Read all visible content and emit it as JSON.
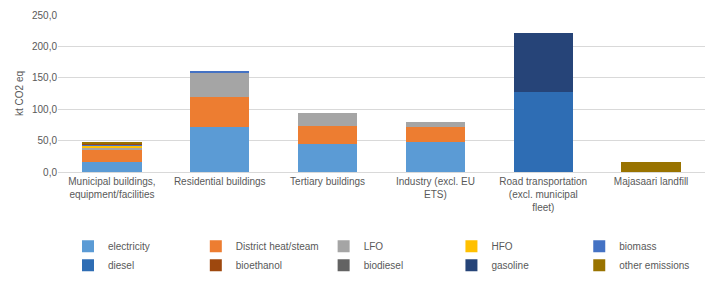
{
  "chart_data": {
    "type": "bar",
    "stacked": true,
    "grid": true,
    "legend": "bottom",
    "y_label": "kt CO2 eq",
    "categories": [
      "Municipal buildings, equipment/facilities",
      "Residential buildings",
      "Tertiary buildings",
      "Industry (excl. EU ETS)",
      "Road transportation (excl. municipal fleet)",
      "Majasaari landfill"
    ],
    "ylim": [
      0,
      250
    ],
    "yticks": [
      {
        "value": 0,
        "label": "0,0"
      },
      {
        "value": 50,
        "label": "50,0"
      },
      {
        "value": 100,
        "label": "100,0"
      },
      {
        "value": 150,
        "label": "150,0"
      },
      {
        "value": 200,
        "label": "200,0"
      },
      {
        "value": 250,
        "label": "250,0"
      }
    ],
    "series": [
      {
        "name": "electricity",
        "color": "#5B9BD5",
        "values": [
          15.5,
          71,
          44,
          47,
          0,
          0
        ]
      },
      {
        "name": "District heat/steam",
        "color": "#ED7D31",
        "values": [
          19,
          49,
          30,
          24,
          0,
          0
        ]
      },
      {
        "name": "LFO",
        "color": "#A5A5A5",
        "values": [
          4,
          37,
          20,
          8,
          0,
          0
        ]
      },
      {
        "name": "HFO",
        "color": "#FFC000",
        "values": [
          3.5,
          0,
          0,
          0,
          0,
          0
        ]
      },
      {
        "name": "biomass",
        "color": "#4472C4",
        "values": [
          1,
          4,
          0,
          0,
          0,
          0
        ]
      },
      {
        "name": "diesel",
        "color": "#2E6DB4",
        "values": [
          1.5,
          0,
          0,
          0,
          127,
          0
        ]
      },
      {
        "name": "bioethanol",
        "color": "#9E480E",
        "values": [
          0.5,
          0,
          0,
          0,
          0,
          0
        ]
      },
      {
        "name": "biodiesel",
        "color": "#636363",
        "values": [
          0.5,
          0,
          0,
          0,
          0,
          0
        ]
      },
      {
        "name": "gasoline",
        "color": "#264478",
        "values": [
          0,
          0,
          0,
          0,
          94,
          0
        ]
      },
      {
        "name": "other emissions",
        "color": "#997300",
        "values": [
          2.5,
          0,
          0,
          0,
          0,
          16
        ]
      }
    ]
  }
}
